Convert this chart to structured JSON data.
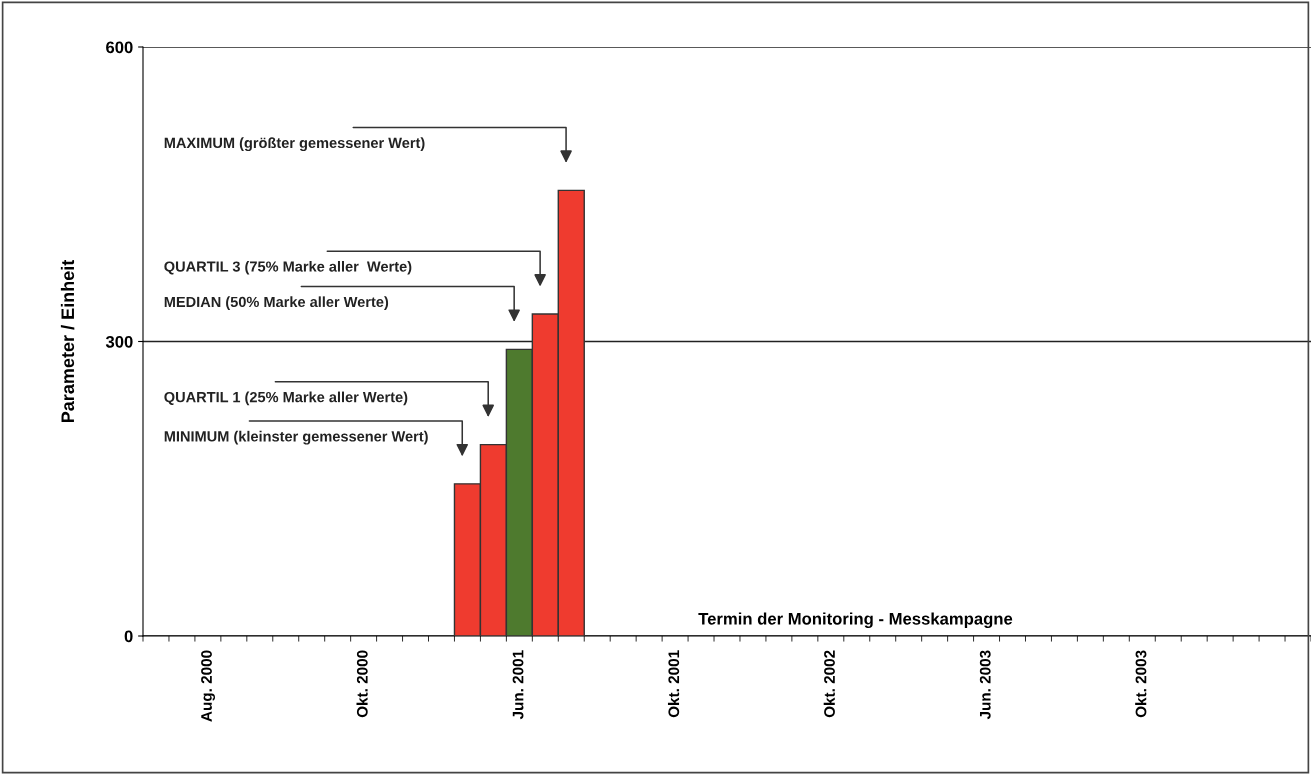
{
  "chart_data": {
    "type": "bar",
    "ylabel": "Parameter / Einheit",
    "xlabel": "Termin der Monitoring - Messkampagne",
    "categories": [
      null,
      null,
      "Aug. 2000",
      null,
      null,
      null,
      null,
      null,
      "Okt. 2000",
      null,
      null,
      null,
      null,
      null,
      "Jun. 2001",
      null,
      null,
      null,
      null,
      null,
      "Okt. 2001",
      null,
      null,
      null,
      null,
      null,
      "Okt. 2002",
      null,
      null,
      null,
      null,
      null,
      "Jun. 2003",
      null,
      null,
      null,
      null,
      null,
      "Okt. 2003",
      null,
      null,
      null,
      null,
      null,
      null
    ],
    "values": [
      null,
      null,
      null,
      null,
      null,
      null,
      null,
      null,
      null,
      null,
      null,
      null,
      155,
      195,
      292,
      328,
      454,
      null,
      null,
      null,
      null,
      null,
      null,
      null,
      null,
      null,
      null,
      null,
      null,
      null,
      null,
      null,
      null,
      null,
      null,
      null,
      null,
      null,
      null,
      null,
      null,
      null,
      null,
      null,
      null
    ],
    "colors": [
      "#ef3b2f",
      "#ef3b2f",
      "#ef3b2f",
      "#ef3b2f",
      "#ef3b2f",
      "#ef3b2f",
      "#ef3b2f",
      "#ef3b2f",
      "#ef3b2f",
      "#ef3b2f",
      "#ef3b2f",
      "#ef3b2f",
      "#ef3b2f",
      "#ef3b2f",
      "#4e7a2e",
      "#ef3b2f",
      "#ef3b2f",
      "#ef3b2f",
      "#ef3b2f",
      "#ef3b2f",
      "#ef3b2f",
      "#ef3b2f",
      "#ef3b2f",
      "#ef3b2f",
      "#ef3b2f",
      "#ef3b2f",
      "#ef3b2f",
      "#ef3b2f",
      "#ef3b2f",
      "#ef3b2f",
      "#ef3b2f",
      "#ef3b2f",
      "#ef3b2f",
      "#ef3b2f",
      "#ef3b2f",
      "#ef3b2f",
      "#ef3b2f",
      "#ef3b2f",
      "#ef3b2f",
      "#ef3b2f",
      "#ef3b2f",
      "#ef3b2f",
      "#ef3b2f",
      "#ef3b2f",
      "#ef3b2f"
    ],
    "ylim": [
      0,
      600
    ],
    "yticks": [
      0,
      300,
      600
    ],
    "grid": "y",
    "annotations": [
      "MINIMUM (kleinster gemessener Wert)",
      "QUARTIL 1 (25% Marke aller Werte)",
      "MEDIAN (50% Marke aller Werte)",
      "QUARTIL 3 (75% Marke aller  Werte)",
      "MAXIMUM (größter gemessener Wert)"
    ]
  }
}
